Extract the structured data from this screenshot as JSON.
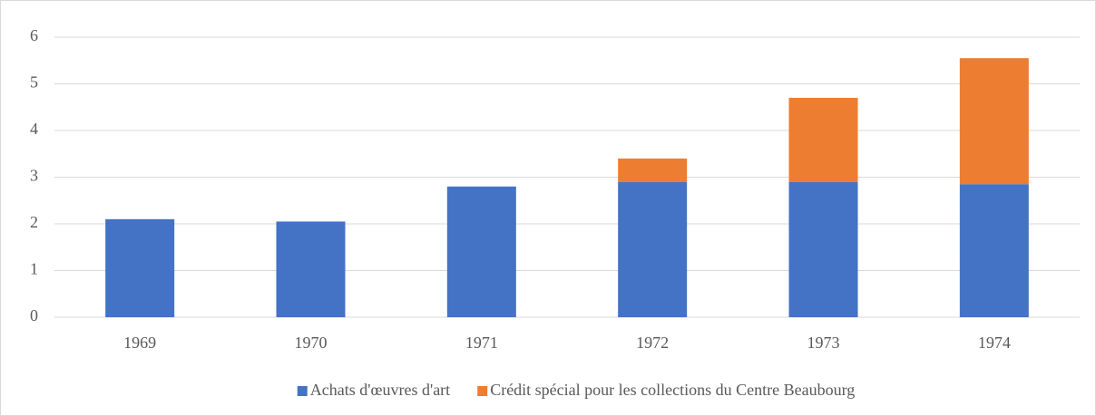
{
  "chart_data": {
    "type": "bar",
    "stacked": true,
    "categories": [
      "1969",
      "1970",
      "1971",
      "1972",
      "1973",
      "1974"
    ],
    "series": [
      {
        "name": "Achats d'œuvres d'art",
        "color": "#4472c4",
        "values": [
          2.1,
          2.05,
          2.8,
          2.9,
          2.9,
          2.85
        ]
      },
      {
        "name": "Crédit spécial pour les collections du Centre Beaubourg",
        "color": "#ed7d31",
        "values": [
          null,
          null,
          null,
          0.5,
          1.8,
          2.7
        ]
      }
    ],
    "ylim": [
      0,
      6
    ],
    "yticks": [
      0,
      1,
      2,
      3,
      4,
      5,
      6
    ],
    "grid": true,
    "legend": "bottom"
  }
}
